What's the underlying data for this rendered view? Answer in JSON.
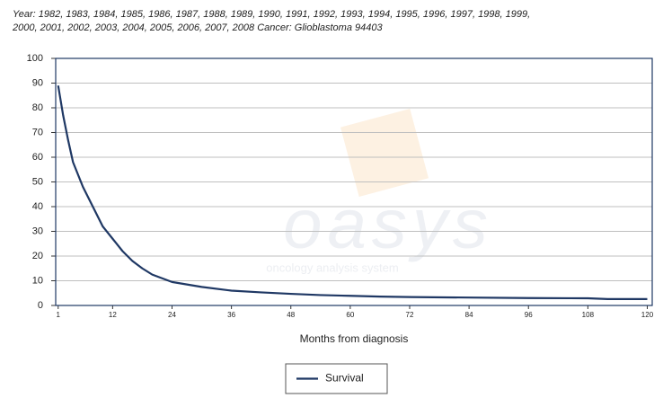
{
  "chart_data": {
    "type": "line",
    "title": [
      "Year: 1982, 1983, 1984, 1985, 1986, 1987, 1988, 1989, 1990, 1991, 1992, 1993, 1994, 1995, 1996, 1997, 1998, 1999,",
      "2000, 2001, 2002, 2003, 2004, 2005, 2006, 2007, 2008    Cancer: Glioblastoma  94403"
    ],
    "x_label": "Months from diagnosis",
    "watermark": [
      "oasys",
      "oncology analysis system"
    ],
    "x": [
      1,
      2,
      3,
      4,
      6,
      8,
      10,
      12,
      14,
      16,
      18,
      20,
      22,
      24,
      30,
      36,
      42,
      48,
      54,
      60,
      66,
      72,
      84,
      96,
      108,
      112,
      120
    ],
    "series": [
      {
        "name": "Survival",
        "color": "#1f3864",
        "values": [
          89,
          77,
          67,
          58,
          48,
          40,
          32,
          27,
          22,
          18,
          15,
          12.5,
          11,
          9.5,
          7.5,
          6,
          5.3,
          4.7,
          4.2,
          3.9,
          3.6,
          3.4,
          3.2,
          3,
          2.9,
          2.6,
          2.6
        ]
      }
    ],
    "xlim": [
      0.5,
      121
    ],
    "xticks": [
      1,
      12,
      24,
      36,
      48,
      60,
      72,
      84,
      96,
      108,
      120
    ],
    "ylim": [
      0,
      100
    ],
    "yticks": [
      0,
      10,
      20,
      30,
      40,
      50,
      60,
      70,
      80,
      90,
      100
    ],
    "grid": true,
    "legend": "bottom"
  }
}
